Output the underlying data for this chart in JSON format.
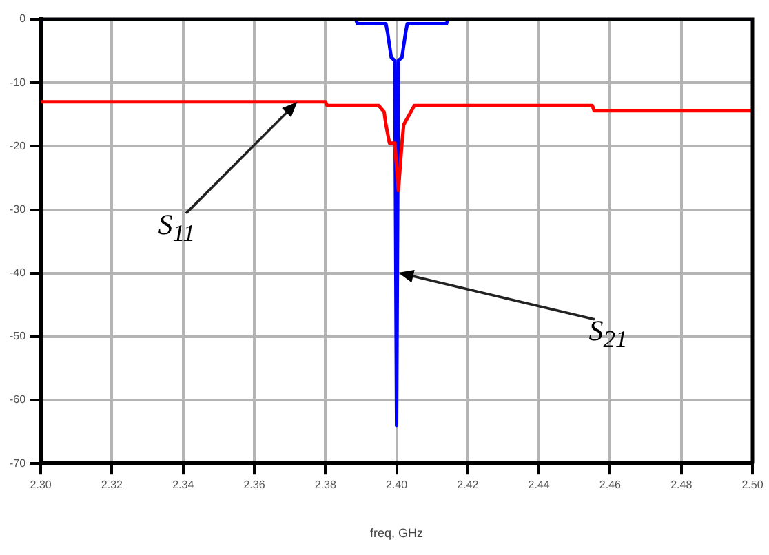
{
  "chart_data": {
    "type": "line",
    "xlabel": "freq, GHz",
    "xlim": [
      2.3,
      2.5
    ],
    "xticks": [
      {
        "value": 2.3,
        "label": "2.30"
      },
      {
        "value": 2.32,
        "label": "2.32"
      },
      {
        "value": 2.34,
        "label": "2.34"
      },
      {
        "value": 2.36,
        "label": "2.36"
      },
      {
        "value": 2.38,
        "label": "2.38"
      },
      {
        "value": 2.4,
        "label": "2.40"
      },
      {
        "value": 2.42,
        "label": "2.42"
      },
      {
        "value": 2.44,
        "label": "2.44"
      },
      {
        "value": 2.46,
        "label": "2.46"
      },
      {
        "value": 2.48,
        "label": "2.48"
      },
      {
        "value": 2.5,
        "label": "2.50"
      }
    ],
    "ylim": [
      -70,
      0
    ],
    "yticks": [
      0,
      -10,
      -20,
      -30,
      -40,
      -50,
      -60,
      -70
    ],
    "grid": true,
    "legend": false,
    "marker": "none",
    "line_style": "solid",
    "series": [
      {
        "color": "#ff0000",
        "x": [
          2.3,
          2.38,
          2.3805,
          2.395,
          2.3965,
          2.397,
          2.398,
          2.3995,
          2.4005,
          2.4015,
          2.402,
          2.404,
          2.405,
          2.455,
          2.4555,
          2.5
        ],
        "values": [
          -13,
          -13,
          -13.6,
          -13.6,
          -14.6,
          -16.6,
          -19.5,
          -19.5,
          -27,
          -19.5,
          -16.6,
          -14.6,
          -13.6,
          -13.6,
          -14.4,
          -14.4
        ]
      },
      {
        "color": "#0000ff",
        "x": [
          2.3,
          2.3885,
          2.389,
          2.397,
          2.3975,
          2.3985,
          2.3995,
          2.4,
          2.4005,
          2.4015,
          2.4025,
          2.403,
          2.414,
          2.4145,
          2.5
        ],
        "values": [
          0,
          0,
          -0.7,
          -0.7,
          -2.2,
          -6,
          -6.5,
          -64,
          -6.5,
          -6,
          -2.2,
          -0.7,
          -0.7,
          0,
          0
        ]
      }
    ],
    "annotations": [
      {
        "text": "S$_{11}$",
        "x": 2.372,
        "y": -13
      },
      {
        "text": "S$_{21}$",
        "x": 2.4,
        "y": -40
      }
    ]
  }
}
